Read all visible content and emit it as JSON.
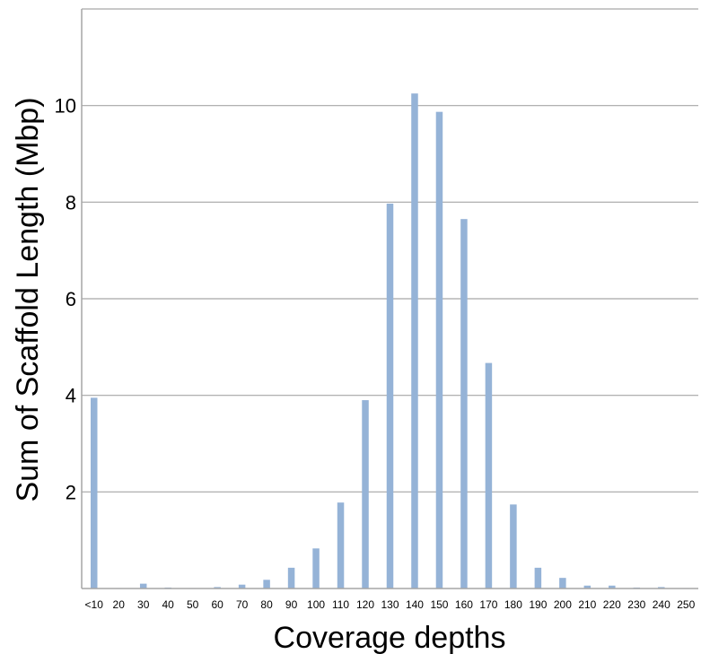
{
  "chart_data": {
    "type": "bar",
    "title": "",
    "xlabel": "Coverage depths",
    "ylabel": "Sum of Scaffold Length (Mbp)",
    "categories": [
      "<10",
      "20",
      "30",
      "40",
      "50",
      "60",
      "70",
      "80",
      "90",
      "100",
      "110",
      "120",
      "130",
      "140",
      "150",
      "160",
      "170",
      "180",
      "190",
      "200",
      "210",
      "220",
      "230",
      "240",
      "250"
    ],
    "values": [
      3.95,
      0.01,
      0.1,
      0.02,
      0.01,
      0.03,
      0.08,
      0.18,
      0.43,
      0.83,
      1.78,
      3.9,
      7.97,
      10.25,
      9.87,
      7.65,
      4.67,
      1.74,
      0.43,
      0.22,
      0.06,
      0.06,
      0.02,
      0.03,
      0.01
    ],
    "ylim": [
      0,
      12
    ],
    "yticks": [
      2,
      4,
      6,
      8,
      10
    ],
    "ytick_labels": [
      "2",
      "4",
      "6",
      "8",
      "10"
    ],
    "grid": true,
    "bar_color": "#95b3d7",
    "grid_color": "#a6a6a6"
  }
}
